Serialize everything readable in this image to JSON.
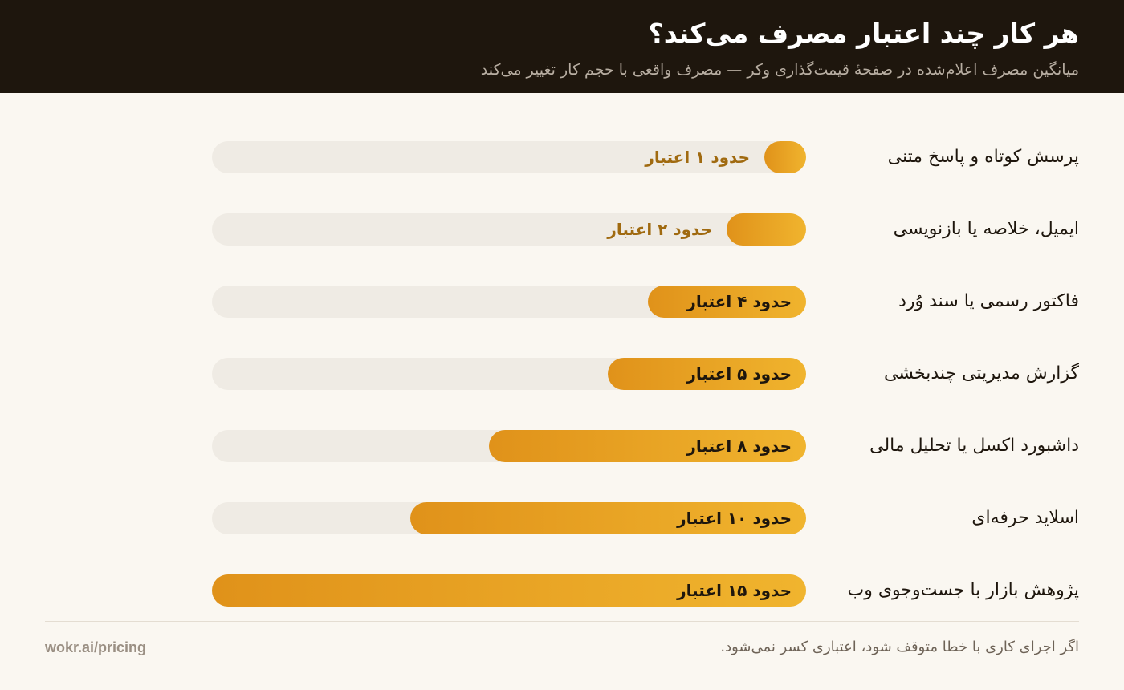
{
  "header": {
    "title": "هر کار چند اعتبار مصرف می‌کند؟",
    "subtitle": "میانگین مصرف اعلام‌شده در صفحهٔ قیمت‌گذاری وکر — مصرف واقعی با حجم کار تغییر می‌کند"
  },
  "chart_data": {
    "type": "bar",
    "orientation": "horizontal",
    "categories": [
      "پرسش کوتاه و پاسخ متنی",
      "ایمیل، خلاصه یا بازنویسی",
      "فاکتور رسمی یا سند وُرد",
      "گزارش مدیریتی چندبخشی",
      "داشبورد اکسل یا تحلیل مالی",
      "اسلاید حرفه‌ای",
      "پژوهش بازار با جست‌وجوی وب"
    ],
    "values": [
      1,
      2,
      4,
      5,
      8,
      10,
      15
    ],
    "value_labels": [
      "حدود ۱ اعتبار",
      "حدود ۲ اعتبار",
      "حدود ۴ اعتبار",
      "حدود ۵ اعتبار",
      "حدود ۸ اعتبار",
      "حدود ۱۰ اعتبار",
      "حدود ۱۵ اعتبار"
    ],
    "xlim": [
      0,
      15
    ],
    "grid": false,
    "legend": "none",
    "colors": {
      "bar_start": "#e0921a",
      "bar_end": "#f0b42e",
      "track": "#efebe4",
      "label_inside": "#1e160d",
      "label_outside": "#a06a10"
    }
  },
  "footer": {
    "note": "اگر اجرای کاری با خطا متوقف شود، اعتباری کسر نمی‌شود.",
    "url": "wokr.ai/pricing"
  }
}
